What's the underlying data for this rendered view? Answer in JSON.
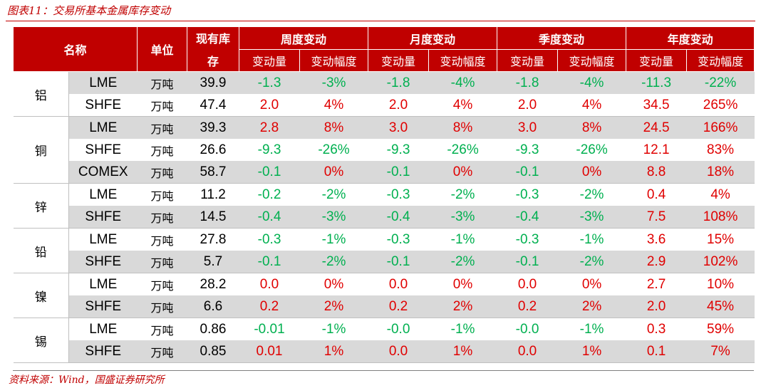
{
  "caption": "图表11：交易所基本金属库存变动",
  "headers": {
    "name": "名称",
    "unit": "单位",
    "stock_line1": "现有库",
    "stock_line2": "存",
    "periods": [
      "周度变动",
      "月度变动",
      "季度变动",
      "年度变动"
    ],
    "change": "变动量",
    "change_pct": "变动幅度"
  },
  "groups": [
    {
      "metal": "铝",
      "rows": [
        {
          "exchange": "LME",
          "unit": "万吨",
          "stock": "39.9",
          "changes": [
            "-1.3",
            "-3%",
            "-1.8",
            "-4%",
            "-1.8",
            "-4%",
            "-11.3",
            "-22%"
          ]
        },
        {
          "exchange": "SHFE",
          "unit": "万吨",
          "stock": "47.4",
          "changes": [
            "2.0",
            "4%",
            "2.0",
            "4%",
            "2.0",
            "4%",
            "34.5",
            "265%"
          ]
        }
      ]
    },
    {
      "metal": "铜",
      "rows": [
        {
          "exchange": "LME",
          "unit": "万吨",
          "stock": "39.3",
          "changes": [
            "2.8",
            "8%",
            "3.0",
            "8%",
            "3.0",
            "8%",
            "24.5",
            "166%"
          ]
        },
        {
          "exchange": "SHFE",
          "unit": "万吨",
          "stock": "26.6",
          "changes": [
            "-9.3",
            "-26%",
            "-9.3",
            "-26%",
            "-9.3",
            "-26%",
            "12.1",
            "83%"
          ]
        },
        {
          "exchange": "COMEX",
          "unit": "万吨",
          "stock": "58.7",
          "changes": [
            "-0.1",
            "0%",
            "-0.1",
            "0%",
            "-0.1",
            "0%",
            "8.8",
            "18%"
          ]
        }
      ]
    },
    {
      "metal": "锌",
      "rows": [
        {
          "exchange": "LME",
          "unit": "万吨",
          "stock": "11.2",
          "changes": [
            "-0.2",
            "-2%",
            "-0.3",
            "-2%",
            "-0.3",
            "-2%",
            "0.4",
            "4%"
          ]
        },
        {
          "exchange": "SHFE",
          "unit": "万吨",
          "stock": "14.5",
          "changes": [
            "-0.4",
            "-3%",
            "-0.4",
            "-3%",
            "-0.4",
            "-3%",
            "7.5",
            "108%"
          ]
        }
      ]
    },
    {
      "metal": "铅",
      "rows": [
        {
          "exchange": "LME",
          "unit": "万吨",
          "stock": "27.8",
          "changes": [
            "-0.3",
            "-1%",
            "-0.3",
            "-1%",
            "-0.3",
            "-1%",
            "3.6",
            "15%"
          ]
        },
        {
          "exchange": "SHFE",
          "unit": "万吨",
          "stock": "5.7",
          "changes": [
            "-0.1",
            "-2%",
            "-0.1",
            "-2%",
            "-0.1",
            "-2%",
            "2.9",
            "102%"
          ]
        }
      ]
    },
    {
      "metal": "镍",
      "rows": [
        {
          "exchange": "LME",
          "unit": "万吨",
          "stock": "28.2",
          "changes": [
            "0.0",
            "0%",
            "0.0",
            "0%",
            "0.0",
            "0%",
            "2.7",
            "10%"
          ]
        },
        {
          "exchange": "SHFE",
          "unit": "万吨",
          "stock": "6.6",
          "changes": [
            "0.2",
            "2%",
            "0.2",
            "2%",
            "0.2",
            "2%",
            "2.0",
            "45%"
          ]
        }
      ]
    },
    {
      "metal": "锡",
      "rows": [
        {
          "exchange": "LME",
          "unit": "万吨",
          "stock": "0.86",
          "changes": [
            "-0.01",
            "-1%",
            "-0.0",
            "-1%",
            "-0.0",
            "-1%",
            "0.3",
            "59%"
          ]
        },
        {
          "exchange": "SHFE",
          "unit": "万吨",
          "stock": "0.85",
          "changes": [
            "0.01",
            "1%",
            "0.0",
            "1%",
            "0.0",
            "1%",
            "0.1",
            "7%"
          ]
        }
      ]
    }
  ],
  "colors": {
    "header_bg": "#c00000",
    "negative": "#00b050",
    "positive": "#e00000",
    "shade": "#d9d9d9"
  },
  "source": "资料来源：Wind，国盛证券研究所"
}
